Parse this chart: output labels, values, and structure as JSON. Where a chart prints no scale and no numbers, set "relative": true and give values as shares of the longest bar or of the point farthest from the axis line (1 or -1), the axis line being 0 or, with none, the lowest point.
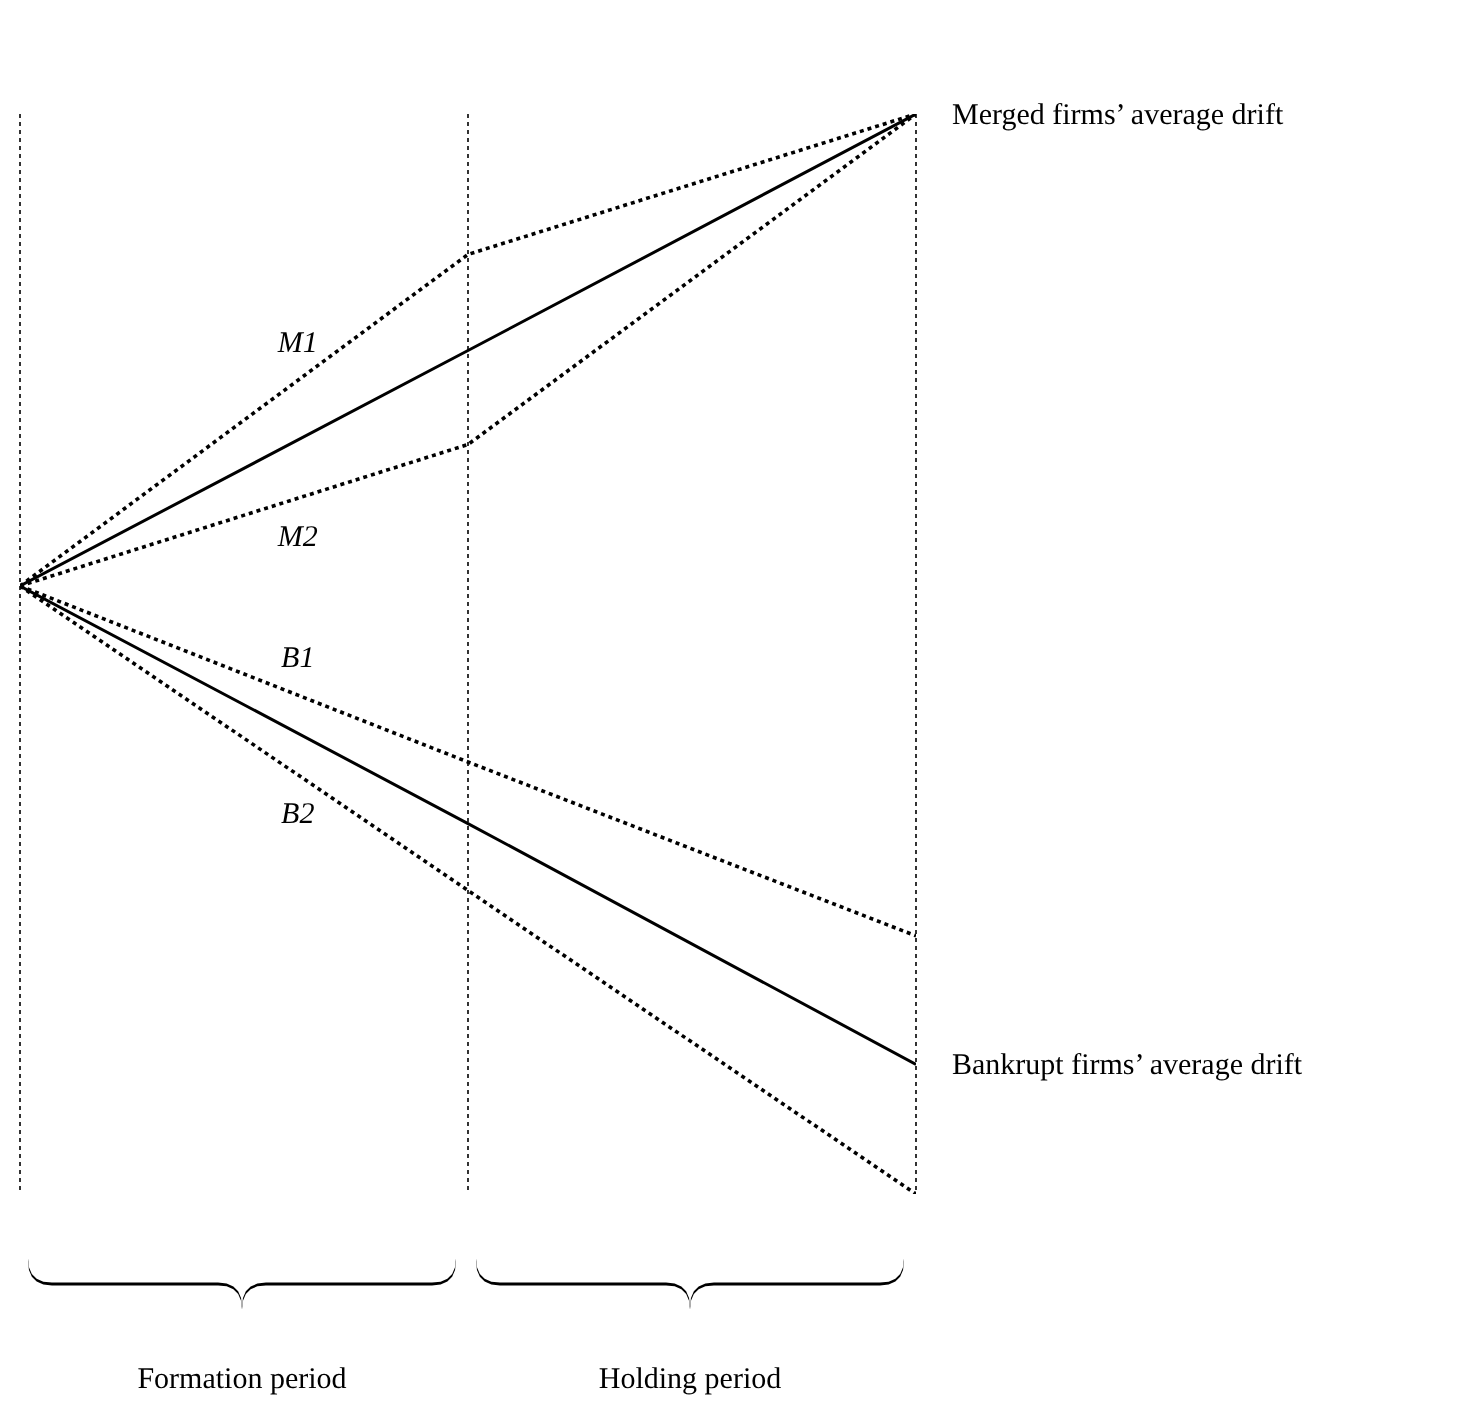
{
  "chart_data": {
    "type": "line",
    "relative": true,
    "categories": [
      null,
      null,
      null
    ],
    "grid": "x",
    "tick_labels": false,
    "marker": "none",
    "series": [
      {
        "name": "Merged firms’ average drift",
        "color": "#000000",
        "line_style": "solid",
        "values": [
          0.563,
          0.781,
          1
        ]
      },
      {
        "name": "M1",
        "color": "#000000",
        "line_style": "dotted",
        "values": [
          0.563,
          0.87,
          1
        ]
      },
      {
        "name": "M2",
        "color": "#000000",
        "line_style": "dotted",
        "values": [
          0.563,
          0.694,
          1
        ]
      },
      {
        "name": "Bankrupt firms’ average drift",
        "color": "#000000",
        "line_style": "solid",
        "values": [
          0.563,
          0.343,
          0.12
        ]
      },
      {
        "name": "B1",
        "color": "#000000",
        "line_style": "dotted",
        "values": [
          0.563,
          0.4,
          0.239
        ]
      },
      {
        "name": "B2",
        "color": "#000000",
        "line_style": "dotted",
        "values": [
          0.563,
          0.281,
          0
        ]
      }
    ],
    "annotations": [
      "Formation period",
      "Holding period"
    ]
  }
}
